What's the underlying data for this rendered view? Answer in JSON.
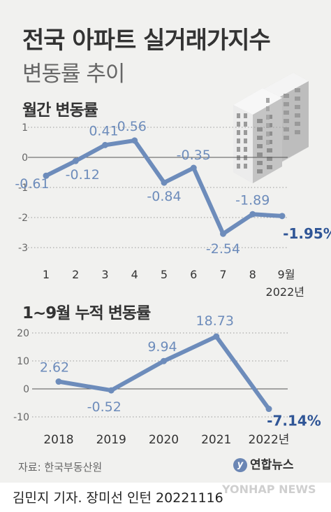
{
  "header": {
    "title": "전국 아파트 실거래가지수",
    "subtitle": "변동률 추이"
  },
  "colors": {
    "line": "#6d8cbb",
    "label": "#6d8cbb",
    "highlight": "#2f5596",
    "background": "#f1f1ef"
  },
  "chart_data": [
    {
      "type": "line",
      "title": "월간 변동률",
      "x": [
        "1",
        "2",
        "3",
        "4",
        "5",
        "6",
        "7",
        "8",
        "9월"
      ],
      "x_extra_label": "2022년",
      "values": [
        -0.61,
        -0.12,
        0.41,
        0.56,
        -0.84,
        -0.35,
        -2.54,
        -1.89,
        -1.95
      ],
      "data_labels": [
        "-0.61",
        "-0.12",
        "0.41",
        "0.56",
        "-0.84",
        "-0.35",
        "-2.54",
        "-1.89",
        "-1.95%"
      ],
      "yticks": [
        "1",
        "0",
        "-1",
        "-2",
        "-3"
      ],
      "ylim": [
        -3,
        1
      ],
      "grid": "dotted-horizontal"
    },
    {
      "type": "line",
      "title": "1~9월 누적 변동률",
      "x": [
        "2018",
        "2019",
        "2020",
        "2021",
        "2022년"
      ],
      "values": [
        2.62,
        -0.52,
        9.94,
        18.73,
        -7.14
      ],
      "data_labels": [
        "2.62",
        "-0.52",
        "9.94",
        "18.73",
        "-7.14%"
      ],
      "yticks": [
        "20",
        "10",
        "0",
        "-10"
      ],
      "ylim": [
        -10,
        20
      ],
      "grid": "dotted-horizontal"
    }
  ],
  "footer": {
    "source": "자료: 한국부동산원",
    "logo_text": "연합뉴스",
    "logo_mark": "y",
    "credit": "김민지 기자. 장미선 인턴 20221116",
    "watermark": "YONHAP NEWS"
  }
}
